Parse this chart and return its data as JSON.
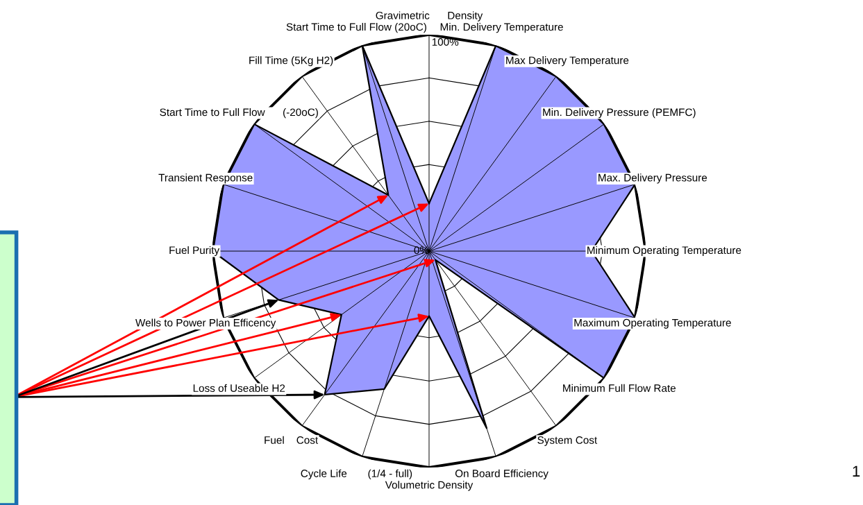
{
  "chart_data": {
    "type": "radar",
    "categories": [
      "Gravimetric      Density",
      "Min. Delivery Temperature",
      "Max Delivery Temperature",
      "Min. Delivery Pressure (PEMFC)",
      "Max. Delivery Pressure",
      "Minimum Operating Temperature",
      "Maximum Operating Temperature",
      "Minimum Full Flow Rate",
      "System Cost",
      "On Board Efficiency",
      "Volumetric Density",
      "Cycle Life       (1/4 - full)",
      "Fuel    Cost",
      "Loss of Useable H2",
      "Wells to Power Plan Efficency",
      "Fuel Purity",
      "Transient Response",
      "Start Time to Full Flow      (-20oC)",
      "Fill Time (5Kg H2)",
      "Start Time to Full Flow (20oC)"
    ],
    "series": [
      {
        "color": "#9999ff",
        "values": [
          22,
          100,
          100,
          100,
          100,
          75,
          100,
          100,
          5,
          86,
          30,
          67,
          82,
          50,
          73,
          100,
          100,
          100,
          32,
          100
        ]
      }
    ],
    "ylim": [
      0,
      100
    ],
    "yticks": [
      {
        "value": 0,
        "label": "0%"
      },
      {
        "value": 100,
        "label": "100%"
      }
    ],
    "grid": true,
    "annotations": [
      "1"
    ]
  }
}
